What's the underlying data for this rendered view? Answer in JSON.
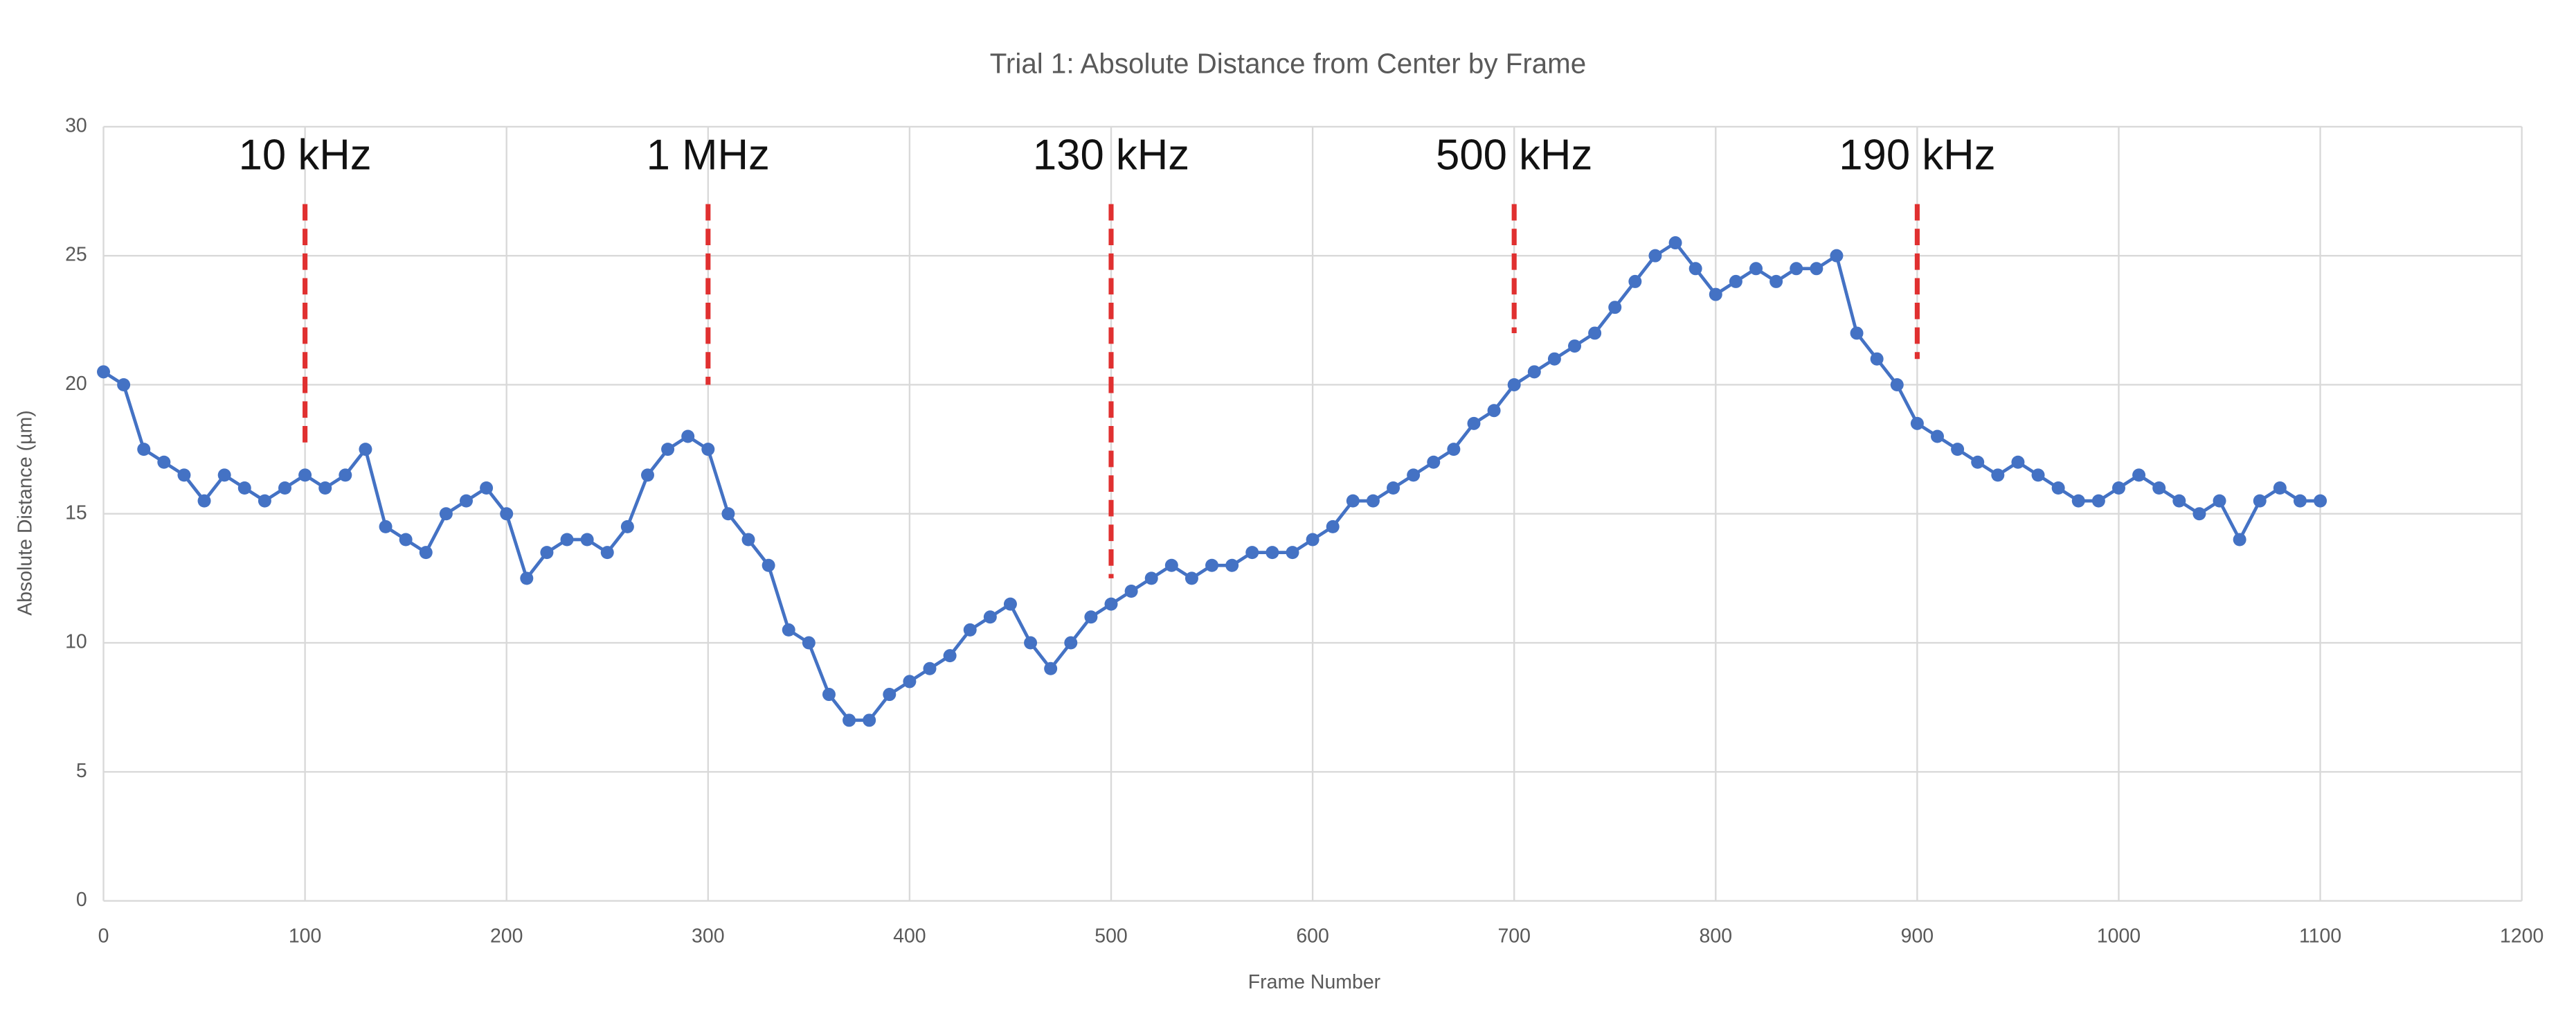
{
  "chart_data": {
    "type": "line",
    "title": "Trial 1: Absolute Distance from Center by Frame",
    "x_label": "Frame Number",
    "y_label": "Absolute Distance (µm)",
    "xlim": [
      0,
      1200
    ],
    "xticks": [
      0,
      100,
      200,
      300,
      400,
      500,
      600,
      700,
      800,
      900,
      1000,
      1100,
      1200
    ],
    "ylim": [
      0,
      30
    ],
    "yticks": [
      0,
      5,
      10,
      15,
      20,
      25,
      30
    ],
    "grid": true,
    "annotations": [
      {
        "label": "10 kHz",
        "x": 100,
        "y_range": [
          17.5,
          27
        ]
      },
      {
        "label": "1 MHz",
        "x": 300,
        "y_range": [
          20,
          27
        ]
      },
      {
        "label": "130 kHz",
        "x": 500,
        "y_range": [
          12.5,
          27
        ]
      },
      {
        "label": "500 kHz",
        "x": 700,
        "y_range": [
          22,
          27
        ]
      },
      {
        "label": "190 kHz",
        "x": 900,
        "y_range": [
          21,
          27
        ]
      }
    ],
    "annotation_color": "#e03030",
    "series": [
      {
        "color": "#4472c4",
        "x": [
          0,
          10,
          20,
          30,
          40,
          50,
          60,
          70,
          80,
          90,
          100,
          110,
          120,
          130,
          140,
          150,
          160,
          170,
          180,
          190,
          200,
          210,
          220,
          230,
          240,
          250,
          260,
          270,
          280,
          290,
          300,
          310,
          320,
          330,
          340,
          350,
          360,
          370,
          380,
          390,
          400,
          410,
          420,
          430,
          440,
          450,
          460,
          470,
          480,
          490,
          500,
          510,
          520,
          530,
          540,
          550,
          560,
          570,
          580,
          590,
          600,
          610,
          620,
          630,
          640,
          650,
          660,
          670,
          680,
          690,
          700,
          710,
          720,
          730,
          740,
          750,
          760,
          770,
          780,
          790,
          800,
          810,
          820,
          830,
          840,
          850,
          860,
          870,
          880,
          890,
          900,
          910,
          920,
          930,
          940,
          950,
          960,
          970,
          980,
          990,
          1000,
          1010,
          1020,
          1030,
          1040,
          1050,
          1060,
          1070,
          1080,
          1090,
          1100
        ],
        "values": [
          20.5,
          20,
          17.5,
          17,
          16.5,
          15.5,
          16.5,
          16,
          15.5,
          16,
          16.5,
          16,
          16.5,
          17.5,
          14.5,
          14,
          13.5,
          15,
          15.5,
          16,
          15,
          12.5,
          13.5,
          14,
          14,
          13.5,
          14.5,
          16.5,
          17.5,
          18,
          17.5,
          15,
          14,
          13,
          10.5,
          10,
          8,
          7,
          7,
          8,
          8.5,
          9,
          9.5,
          10.5,
          11,
          11.5,
          10,
          9,
          10,
          11,
          11.5,
          12,
          12.5,
          13,
          12.5,
          13,
          13,
          13.5,
          13.5,
          13.5,
          14,
          14.5,
          15.5,
          15.5,
          16,
          16.5,
          17,
          17.5,
          18.5,
          19,
          20,
          20.5,
          21,
          21.5,
          22,
          23,
          24,
          25,
          25.5,
          24.5,
          23.5,
          24,
          24.5,
          24,
          24.5,
          24.5,
          25,
          22,
          21,
          20,
          18.5,
          18,
          17.5,
          17,
          16.5,
          17,
          16.5,
          16,
          15.5,
          15.5,
          16,
          16.5,
          16,
          15.5,
          15,
          15.5,
          14,
          15.5,
          16,
          15.5,
          15.5
        ]
      }
    ]
  }
}
